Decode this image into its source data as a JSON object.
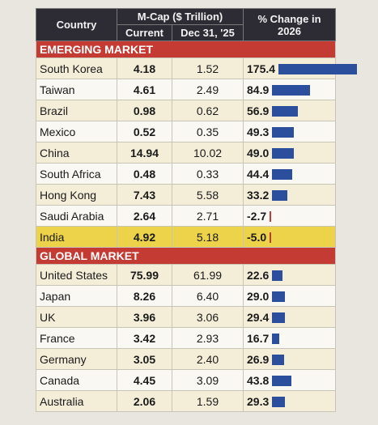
{
  "header": {
    "country": "Country",
    "mcap": "M-Cap ($ Trillion)",
    "current": "Current",
    "dec31": "Dec 31, '25",
    "change": "% Change in 2026"
  },
  "sections": [
    {
      "title": "EMERGING MARKET",
      "rows": [
        {
          "country": "South Korea",
          "current": "4.18",
          "dec31": "1.52",
          "change": 175.4
        },
        {
          "country": "Taiwan",
          "current": "4.61",
          "dec31": "2.49",
          "change": 84.9
        },
        {
          "country": "Brazil",
          "current": "0.98",
          "dec31": "0.62",
          "change": 56.9
        },
        {
          "country": "Mexico",
          "current": "0.52",
          "dec31": "0.35",
          "change": 49.3
        },
        {
          "country": "China",
          "current": "14.94",
          "dec31": "10.02",
          "change": 49.0,
          "value_label": "49.0"
        },
        {
          "country": "South Africa",
          "current": "0.48",
          "dec31": "0.33",
          "change": 44.4
        },
        {
          "country": "Hong Kong",
          "current": "7.43",
          "dec31": "5.58",
          "change": 33.2
        },
        {
          "country": "Saudi Arabia",
          "current": "2.64",
          "dec31": "2.71",
          "change": -2.7
        },
        {
          "country": "India",
          "current": "4.92",
          "dec31": "5.18",
          "change": -5.0,
          "value_label": "-5.0",
          "highlight": true
        }
      ]
    },
    {
      "title": "GLOBAL MARKET",
      "rows": [
        {
          "country": "United States",
          "current": "75.99",
          "dec31": "61.99",
          "change": 22.6
        },
        {
          "country": "Japan",
          "current": "8.26",
          "dec31": "6.40",
          "change": 29.0,
          "value_label": "29.0"
        },
        {
          "country": "UK",
          "current": "3.96",
          "dec31": "3.06",
          "change": 29.4
        },
        {
          "country": "France",
          "current": "3.42",
          "dec31": "2.93",
          "change": 16.7
        },
        {
          "country": "Germany",
          "current": "3.05",
          "dec31": "2.40",
          "change": 26.9
        },
        {
          "country": "Canada",
          "current": "4.45",
          "dec31": "3.09",
          "change": 43.8
        },
        {
          "country": "Australia",
          "current": "2.06",
          "dec31": "1.59",
          "change": 29.3
        }
      ]
    }
  ]
}
